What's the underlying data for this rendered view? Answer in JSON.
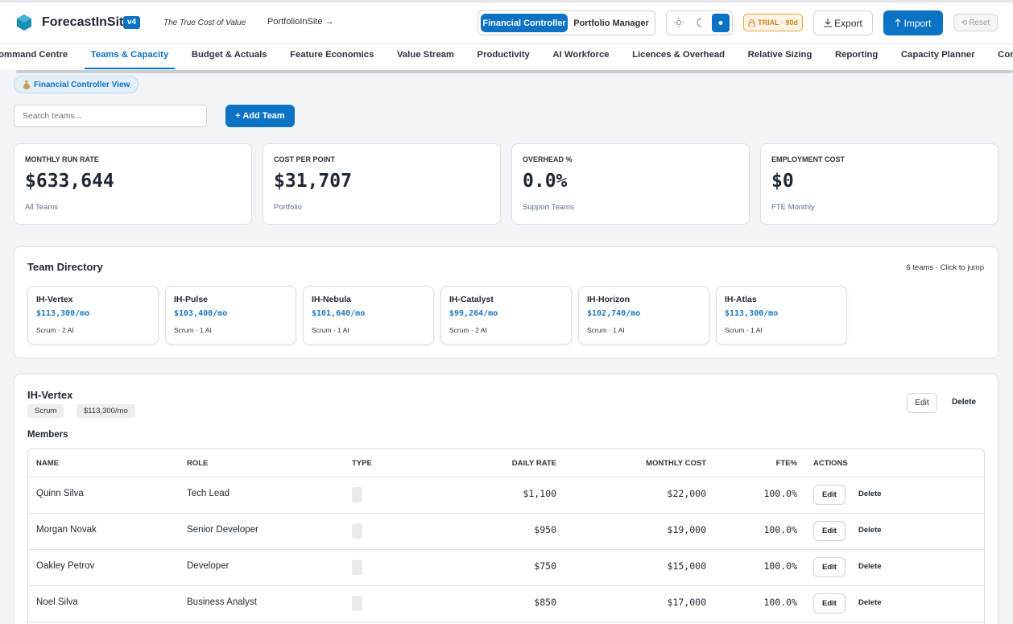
{
  "header": {
    "brand": "ForecastInSite",
    "version": "v4",
    "tagline": "The True Cost of Value",
    "link": "PortfolioInSite →",
    "roles": [
      "Financial Controller",
      "Portfolio Manager"
    ],
    "trial": "TRIAL · 90d",
    "export": "Export",
    "import": "Import",
    "reset": "Reset"
  },
  "nav": {
    "tabs": [
      "Command Centre",
      "Teams & Capacity",
      "Budget & Actuals",
      "Feature Economics",
      "Value Stream",
      "Productivity",
      "AI Workforce",
      "Licences & Overhead",
      "Relative Sizing",
      "Reporting",
      "Capacity Planner",
      "Configuration"
    ],
    "active": 1
  },
  "view_badge": "Financial Controller View",
  "search_placeholder": "Search teams...",
  "add_team": "+ Add Team",
  "kpis": [
    {
      "label": "MONTHLY RUN RATE",
      "value": "$633,644",
      "note": "All Teams"
    },
    {
      "label": "COST PER POINT",
      "value": "$31,707",
      "note": "Portfolio"
    },
    {
      "label": "OVERHEAD %",
      "value": "0.0%",
      "note": "Support Teams"
    },
    {
      "label": "EMPLOYMENT COST",
      "value": "$0",
      "note": "FTE Monthly"
    }
  ],
  "directory": {
    "title": "Team Directory",
    "summary": "6 teams · Click to jump",
    "teams": [
      {
        "name": "IH-Vertex",
        "cost": "$113,300/mo",
        "meta": "Scrum · 2 AI"
      },
      {
        "name": "IH-Pulse",
        "cost": "$103,400/mo",
        "meta": "Scrum · 1 AI"
      },
      {
        "name": "IH-Nebula",
        "cost": "$101,640/mo",
        "meta": "Scrum · 1 AI"
      },
      {
        "name": "IH-Catalyst",
        "cost": "$99,264/mo",
        "meta": "Scrum · 2 AI"
      },
      {
        "name": "IH-Horizon",
        "cost": "$102,740/mo",
        "meta": "Scrum · 1 AI"
      },
      {
        "name": "IH-Atlas",
        "cost": "$113,300/mo",
        "meta": "Scrum · 1 AI"
      }
    ]
  },
  "team": {
    "name": "IH-Vertex",
    "tags": [
      "Scrum",
      "$113,300/mo"
    ],
    "actions": [
      "Edit",
      "Delete"
    ],
    "members_title": "Members",
    "columns": [
      "NAME",
      "ROLE",
      "TYPE",
      "DAILY RATE",
      "MONTHLY COST",
      "FTE%",
      "ACTIONS"
    ],
    "row_actions": [
      "Edit",
      "Delete"
    ],
    "rows": [
      {
        "name": "Quinn Silva",
        "role": "Tech Lead",
        "daily_rate": "$1,100",
        "monthly_cost": "$22,000",
        "fte": "100.0%"
      },
      {
        "name": "Morgan Novak",
        "role": "Senior Developer",
        "daily_rate": "$950",
        "monthly_cost": "$19,000",
        "fte": "100.0%"
      },
      {
        "name": "Oakley Petrov",
        "role": "Developer",
        "daily_rate": "$750",
        "monthly_cost": "$15,000",
        "fte": "100.0%"
      },
      {
        "name": "Noel Silva",
        "role": "Business Analyst",
        "daily_rate": "$850",
        "monthly_cost": "$17,000",
        "fte": "100.0%"
      }
    ]
  }
}
